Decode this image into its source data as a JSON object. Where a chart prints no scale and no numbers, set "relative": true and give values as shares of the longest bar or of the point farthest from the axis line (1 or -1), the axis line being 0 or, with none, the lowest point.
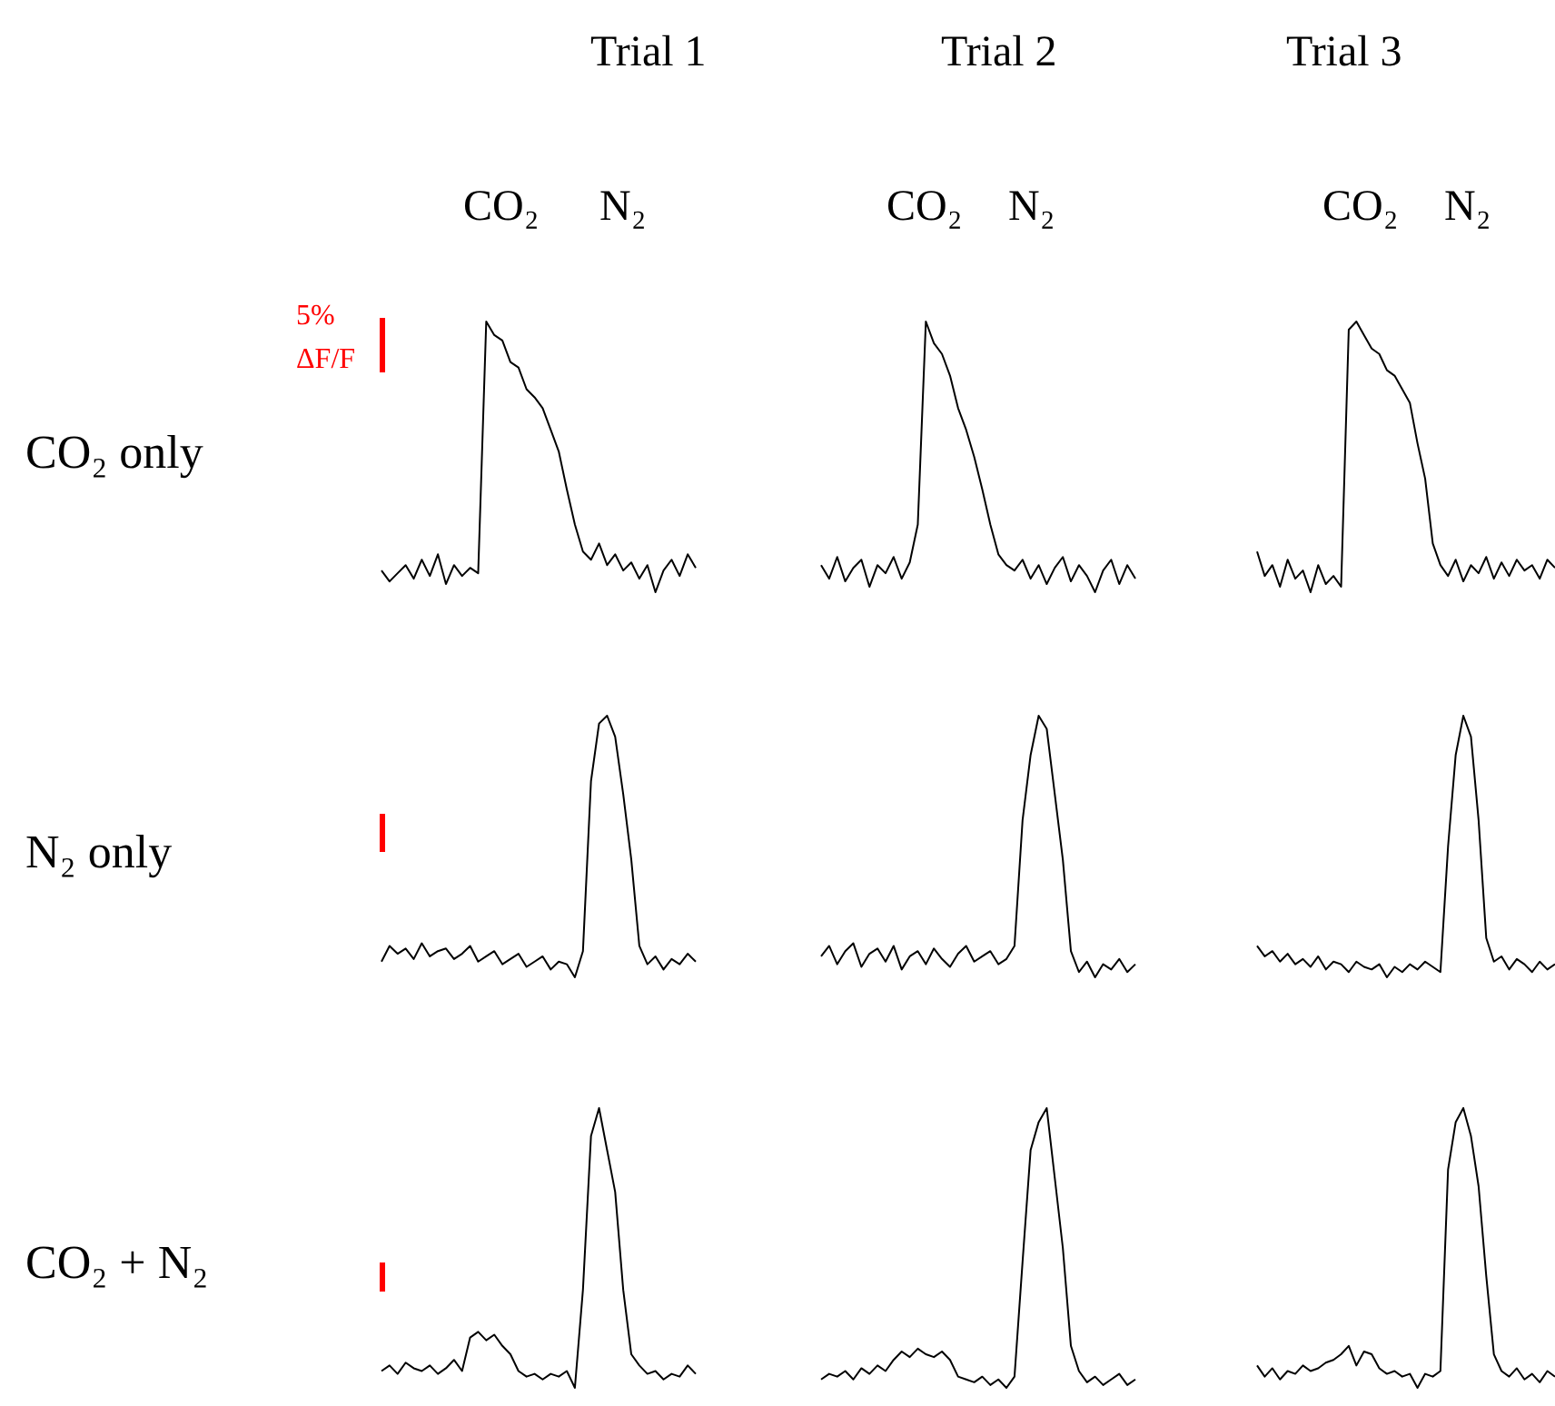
{
  "chart_data": [
    {
      "type": "line",
      "title": "Trial 1",
      "annotations": [
        "CO₂",
        "N₂",
        "5%",
        "ΔF/F"
      ],
      "ylabel": "CO₂ only",
      "relative": true,
      "marker": "none",
      "categories": [
        null,
        null,
        null,
        null,
        null,
        null,
        null,
        null,
        null,
        null,
        null,
        null,
        null,
        null,
        null,
        null,
        null,
        null,
        null,
        null,
        null,
        null,
        null,
        null,
        null,
        null,
        null,
        null,
        null,
        null,
        null,
        null,
        null,
        null,
        null,
        null,
        null,
        null,
        null,
        null
      ],
      "series": [
        {
          "color": "#000000",
          "values": [
            0.08,
            0.04,
            0.07,
            0.1,
            0.05,
            0.12,
            0.06,
            0.14,
            0.03,
            0.1,
            0.06,
            0.09,
            0.07,
            1.0,
            0.95,
            0.93,
            0.85,
            0.83,
            0.75,
            0.72,
            0.68,
            0.6,
            0.52,
            0.38,
            0.25,
            0.15,
            0.12,
            0.18,
            0.1,
            0.14,
            0.08,
            0.11,
            0.05,
            0.1,
            0.0,
            0.08,
            0.12,
            0.06,
            0.14,
            0.09
          ]
        }
      ]
    },
    {
      "type": "line",
      "title": "Trial 2",
      "annotations": [
        "CO₂",
        "N₂"
      ],
      "relative": true,
      "marker": "none",
      "categories": [
        null,
        null,
        null,
        null,
        null,
        null,
        null,
        null,
        null,
        null,
        null,
        null,
        null,
        null,
        null,
        null,
        null,
        null,
        null,
        null,
        null,
        null,
        null,
        null,
        null,
        null,
        null,
        null,
        null,
        null,
        null,
        null,
        null,
        null,
        null,
        null,
        null,
        null,
        null,
        null
      ],
      "series": [
        {
          "color": "#000000",
          "values": [
            0.1,
            0.05,
            0.13,
            0.04,
            0.09,
            0.12,
            0.02,
            0.1,
            0.07,
            0.13,
            0.05,
            0.11,
            0.25,
            1.0,
            0.92,
            0.88,
            0.8,
            0.68,
            0.6,
            0.5,
            0.38,
            0.25,
            0.14,
            0.1,
            0.08,
            0.12,
            0.05,
            0.1,
            0.03,
            0.09,
            0.13,
            0.04,
            0.1,
            0.06,
            0.0,
            0.08,
            0.12,
            0.03,
            0.1,
            0.05
          ]
        }
      ]
    },
    {
      "type": "line",
      "title": "Trial 3",
      "annotations": [
        "CO₂",
        "N₂"
      ],
      "relative": true,
      "marker": "none",
      "categories": [
        null,
        null,
        null,
        null,
        null,
        null,
        null,
        null,
        null,
        null,
        null,
        null,
        null,
        null,
        null,
        null,
        null,
        null,
        null,
        null,
        null,
        null,
        null,
        null,
        null,
        null,
        null,
        null,
        null,
        null,
        null,
        null,
        null,
        null,
        null,
        null,
        null,
        null,
        null,
        null
      ],
      "series": [
        {
          "color": "#000000",
          "values": [
            0.15,
            0.06,
            0.1,
            0.02,
            0.12,
            0.05,
            0.08,
            0.0,
            0.1,
            0.03,
            0.06,
            0.02,
            0.97,
            1.0,
            0.95,
            0.9,
            0.88,
            0.82,
            0.8,
            0.75,
            0.7,
            0.55,
            0.42,
            0.18,
            0.1,
            0.06,
            0.12,
            0.04,
            0.1,
            0.07,
            0.13,
            0.05,
            0.11,
            0.06,
            0.12,
            0.08,
            0.1,
            0.05,
            0.12,
            0.09
          ]
        }
      ]
    },
    {
      "type": "line",
      "ylabel": "N₂ only",
      "relative": true,
      "marker": "none",
      "categories": [
        null,
        null,
        null,
        null,
        null,
        null,
        null,
        null,
        null,
        null,
        null,
        null,
        null,
        null,
        null,
        null,
        null,
        null,
        null,
        null,
        null,
        null,
        null,
        null,
        null,
        null,
        null,
        null,
        null,
        null,
        null,
        null,
        null,
        null,
        null,
        null,
        null,
        null,
        null,
        null
      ],
      "series": [
        {
          "color": "#000000",
          "values": [
            0.06,
            0.12,
            0.09,
            0.11,
            0.07,
            0.13,
            0.08,
            0.1,
            0.11,
            0.07,
            0.09,
            0.12,
            0.06,
            0.08,
            0.1,
            0.05,
            0.07,
            0.09,
            0.04,
            0.06,
            0.08,
            0.03,
            0.06,
            0.05,
            0.0,
            0.1,
            0.75,
            0.97,
            1.0,
            0.92,
            0.7,
            0.45,
            0.12,
            0.05,
            0.08,
            0.03,
            0.07,
            0.05,
            0.09,
            0.06
          ]
        }
      ]
    },
    {
      "type": "line",
      "relative": true,
      "marker": "none",
      "categories": [
        null,
        null,
        null,
        null,
        null,
        null,
        null,
        null,
        null,
        null,
        null,
        null,
        null,
        null,
        null,
        null,
        null,
        null,
        null,
        null,
        null,
        null,
        null,
        null,
        null,
        null,
        null,
        null,
        null,
        null,
        null,
        null,
        null,
        null,
        null,
        null,
        null,
        null,
        null,
        null
      ],
      "series": [
        {
          "color": "#000000",
          "values": [
            0.08,
            0.12,
            0.05,
            0.1,
            0.13,
            0.04,
            0.09,
            0.11,
            0.06,
            0.12,
            0.03,
            0.08,
            0.1,
            0.05,
            0.11,
            0.07,
            0.04,
            0.09,
            0.12,
            0.06,
            0.08,
            0.1,
            0.05,
            0.07,
            0.12,
            0.6,
            0.85,
            1.0,
            0.95,
            0.7,
            0.45,
            0.1,
            0.02,
            0.06,
            0.0,
            0.05,
            0.03,
            0.07,
            0.02,
            0.05
          ]
        }
      ]
    },
    {
      "type": "line",
      "relative": true,
      "marker": "none",
      "categories": [
        null,
        null,
        null,
        null,
        null,
        null,
        null,
        null,
        null,
        null,
        null,
        null,
        null,
        null,
        null,
        null,
        null,
        null,
        null,
        null,
        null,
        null,
        null,
        null,
        null,
        null,
        null,
        null,
        null,
        null,
        null,
        null,
        null,
        null,
        null,
        null,
        null,
        null,
        null,
        null
      ],
      "series": [
        {
          "color": "#000000",
          "values": [
            0.12,
            0.08,
            0.1,
            0.06,
            0.09,
            0.05,
            0.07,
            0.04,
            0.08,
            0.03,
            0.06,
            0.05,
            0.02,
            0.06,
            0.04,
            0.03,
            0.05,
            0.0,
            0.04,
            0.02,
            0.05,
            0.03,
            0.06,
            0.04,
            0.02,
            0.5,
            0.85,
            1.0,
            0.92,
            0.6,
            0.15,
            0.06,
            0.08,
            0.03,
            0.07,
            0.05,
            0.02,
            0.06,
            0.03,
            0.05
          ]
        }
      ]
    },
    {
      "type": "line",
      "ylabel": "CO₂ + N₂",
      "relative": true,
      "marker": "none",
      "categories": [
        null,
        null,
        null,
        null,
        null,
        null,
        null,
        null,
        null,
        null,
        null,
        null,
        null,
        null,
        null,
        null,
        null,
        null,
        null,
        null,
        null,
        null,
        null,
        null,
        null,
        null,
        null,
        null,
        null,
        null,
        null,
        null,
        null,
        null,
        null,
        null,
        null,
        null,
        null,
        null
      ],
      "series": [
        {
          "color": "#000000",
          "values": [
            0.06,
            0.08,
            0.05,
            0.09,
            0.07,
            0.06,
            0.08,
            0.05,
            0.07,
            0.1,
            0.06,
            0.18,
            0.2,
            0.17,
            0.19,
            0.15,
            0.12,
            0.06,
            0.04,
            0.05,
            0.03,
            0.05,
            0.04,
            0.06,
            0.0,
            0.35,
            0.9,
            1.0,
            0.85,
            0.7,
            0.35,
            0.12,
            0.08,
            0.05,
            0.06,
            0.03,
            0.05,
            0.04,
            0.08,
            0.05
          ]
        }
      ]
    },
    {
      "type": "line",
      "relative": true,
      "marker": "none",
      "categories": [
        null,
        null,
        null,
        null,
        null,
        null,
        null,
        null,
        null,
        null,
        null,
        null,
        null,
        null,
        null,
        null,
        null,
        null,
        null,
        null,
        null,
        null,
        null,
        null,
        null,
        null,
        null,
        null,
        null,
        null,
        null,
        null,
        null,
        null,
        null,
        null,
        null,
        null,
        null,
        null
      ],
      "series": [
        {
          "color": "#000000",
          "values": [
            0.03,
            0.05,
            0.04,
            0.06,
            0.03,
            0.07,
            0.05,
            0.08,
            0.06,
            0.1,
            0.13,
            0.11,
            0.14,
            0.12,
            0.11,
            0.13,
            0.1,
            0.04,
            0.03,
            0.02,
            0.04,
            0.01,
            0.03,
            0.0,
            0.04,
            0.45,
            0.85,
            0.95,
            1.0,
            0.75,
            0.5,
            0.15,
            0.06,
            0.02,
            0.04,
            0.01,
            0.03,
            0.05,
            0.01,
            0.03
          ]
        }
      ]
    },
    {
      "type": "line",
      "relative": true,
      "marker": "none",
      "categories": [
        null,
        null,
        null,
        null,
        null,
        null,
        null,
        null,
        null,
        null,
        null,
        null,
        null,
        null,
        null,
        null,
        null,
        null,
        null,
        null,
        null,
        null,
        null,
        null,
        null,
        null,
        null,
        null,
        null,
        null,
        null,
        null,
        null,
        null,
        null,
        null,
        null,
        null,
        null,
        null
      ],
      "series": [
        {
          "color": "#000000",
          "values": [
            0.08,
            0.04,
            0.07,
            0.03,
            0.06,
            0.05,
            0.08,
            0.06,
            0.07,
            0.09,
            0.1,
            0.12,
            0.15,
            0.08,
            0.13,
            0.12,
            0.07,
            0.05,
            0.06,
            0.04,
            0.05,
            0.0,
            0.05,
            0.04,
            0.06,
            0.78,
            0.95,
            1.0,
            0.9,
            0.72,
            0.4,
            0.12,
            0.06,
            0.04,
            0.07,
            0.03,
            0.05,
            0.02,
            0.06,
            0.04
          ]
        }
      ]
    }
  ]
}
